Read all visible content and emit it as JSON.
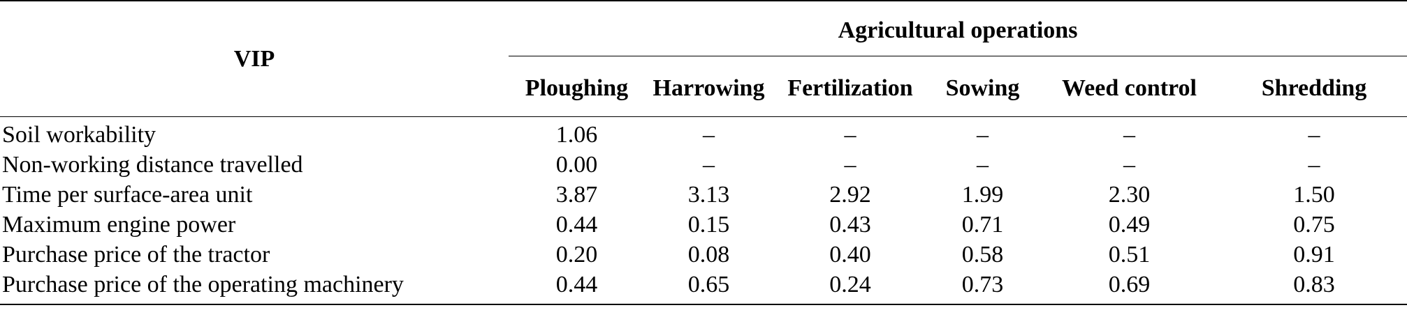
{
  "table": {
    "corner_header": "VIP",
    "group_header": "Agricultural operations",
    "columns": [
      "Ploughing",
      "Harrowing",
      "Fertilization",
      "Sowing",
      "Weed control",
      "Shredding"
    ],
    "rows": [
      {
        "label": "Soil workability",
        "values": [
          "1.06",
          "–",
          "–",
          "–",
          "–",
          "–"
        ]
      },
      {
        "label": "Non-working distance travelled",
        "values": [
          "0.00",
          "–",
          "–",
          "–",
          "–",
          "–"
        ]
      },
      {
        "label": "Time per surface-area unit",
        "values": [
          "3.87",
          "3.13",
          "2.92",
          "1.99",
          "2.30",
          "1.50"
        ]
      },
      {
        "label": "Maximum engine power",
        "values": [
          "0.44",
          "0.15",
          "0.43",
          "0.71",
          "0.49",
          "0.75"
        ]
      },
      {
        "label": "Purchase price of the tractor",
        "values": [
          "0.20",
          "0.08",
          "0.40",
          "0.58",
          "0.51",
          "0.91"
        ]
      },
      {
        "label": "Purchase price of the operating machinery",
        "values": [
          "0.44",
          "0.65",
          "0.24",
          "0.73",
          "0.69",
          "0.83"
        ]
      }
    ]
  }
}
